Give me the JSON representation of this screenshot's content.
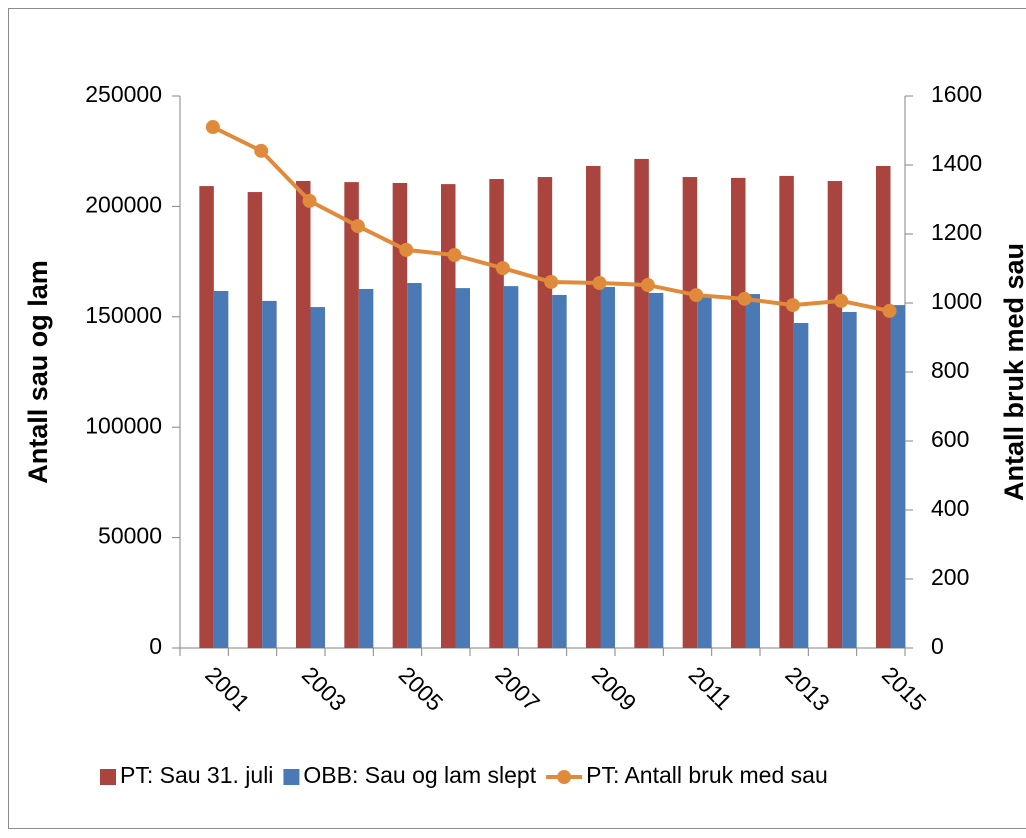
{
  "chart_data": {
    "type": "bar-line",
    "categories": [
      "2001",
      null,
      "2003",
      null,
      "2005",
      null,
      "2007",
      null,
      "2009",
      null,
      "2011",
      null,
      "2013",
      null,
      "2015"
    ],
    "y_label": "Antall sau og lam",
    "y2_label": "Antall bruk med sau",
    "ylim": [
      0,
      250000
    ],
    "yticks": [
      0,
      50000,
      100000,
      150000,
      200000,
      250000
    ],
    "y2lim": [
      0,
      1600
    ],
    "y2ticks": [
      0,
      200,
      400,
      600,
      800,
      1000,
      1200,
      1400,
      1600
    ],
    "series": [
      {
        "name": "PT: Sau 31. juli",
        "type": "bar",
        "color": "#a9443f",
        "values": [
          209200,
          206500,
          211500,
          211000,
          210600,
          210100,
          212400,
          213300,
          218300,
          221500,
          213300,
          212900,
          213800,
          211500,
          218300
        ]
      },
      {
        "name": "OBB: Sau og lam slept",
        "type": "bar",
        "color": "#4a7ab5",
        "values": [
          161700,
          157200,
          154400,
          162600,
          165300,
          163000,
          163900,
          159900,
          163500,
          160800,
          159400,
          160300,
          147200,
          152200,
          155300
        ]
      },
      {
        "name": "PT: Antall bruk med sau",
        "type": "line",
        "axis": "y2",
        "color": "#e08a3b",
        "values": [
          1510,
          1441,
          1296,
          1223,
          1154,
          1139,
          1101,
          1061,
          1058,
          1052,
          1023,
          1012,
          994,
          1006,
          977
        ]
      }
    ]
  }
}
